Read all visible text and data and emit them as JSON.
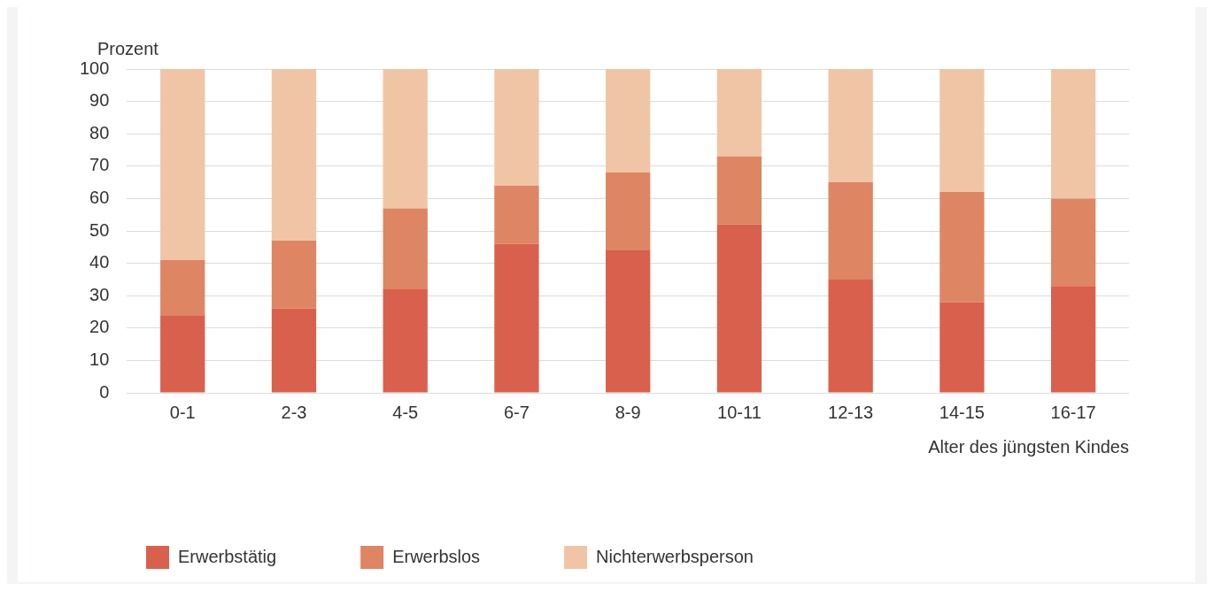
{
  "chart_data": {
    "type": "bar",
    "stacked": true,
    "ylabel": "Prozent",
    "xlabel": "Alter des jüngsten Kindes",
    "categories": [
      "0-1",
      "2-3",
      "4-5",
      "6-7",
      "8-9",
      "10-11",
      "12-13",
      "14-15",
      "16-17"
    ],
    "series": [
      {
        "name": "Erwerbstätig",
        "color": "#d9604c",
        "values": [
          24,
          26,
          32,
          46,
          44,
          52,
          35,
          28,
          33
        ]
      },
      {
        "name": "Erwerbslos",
        "color": "#de8563",
        "values": [
          17,
          21,
          25,
          18,
          24,
          21,
          30,
          34,
          27
        ]
      },
      {
        "name": "Nichterwerbsperson",
        "color": "#f0c5a5",
        "values": [
          59,
          53,
          43,
          36,
          32,
          27,
          35,
          38,
          40
        ]
      }
    ],
    "ylim": [
      0,
      100
    ],
    "yticks": [
      0,
      10,
      20,
      30,
      40,
      50,
      60,
      70,
      80,
      90,
      100
    ],
    "grid": "y",
    "legend": "bottom"
  }
}
